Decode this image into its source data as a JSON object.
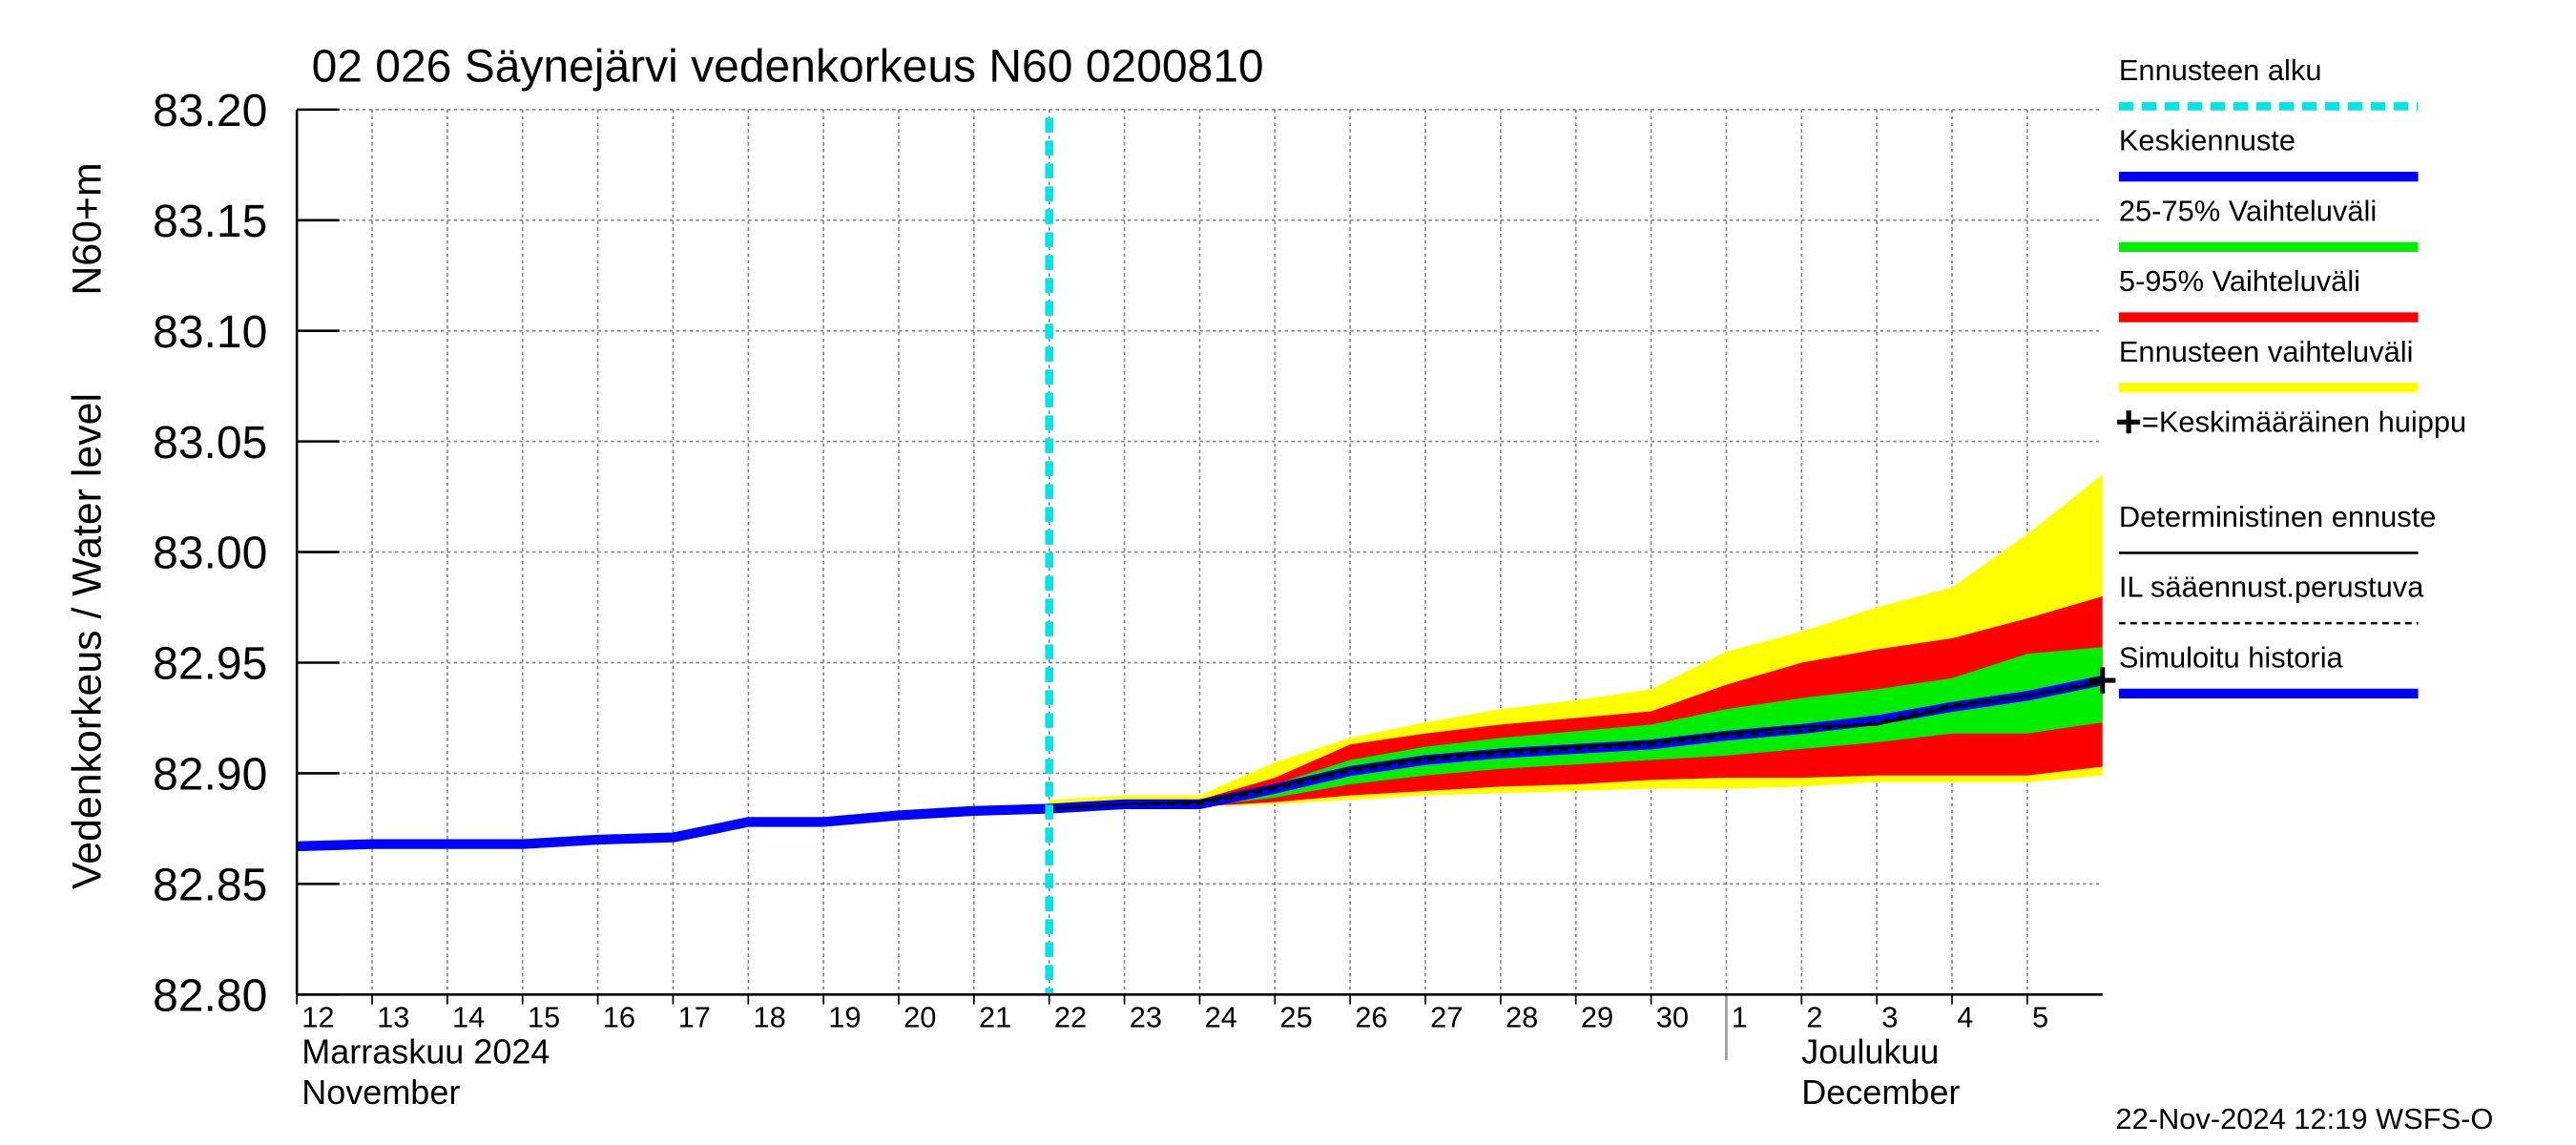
{
  "chart_data": {
    "type": "line",
    "title": "02 026 Säynejärvi vedenkorkeus N60 0200810",
    "y_label": "Vedenkorkeus / Water level",
    "y_unit": "N60+m",
    "footer": "22-Nov-2024 12:19 WSFS-O",
    "grid": true,
    "legend": "right",
    "ylim": [
      82.8,
      83.2
    ],
    "yticks": [
      {
        "value": 82.8,
        "label": "82.80"
      },
      {
        "value": 82.85,
        "label": "82.85"
      },
      {
        "value": 82.9,
        "label": "82.90"
      },
      {
        "value": 82.95,
        "label": "82.95"
      },
      {
        "value": 83.0,
        "label": "83.00"
      },
      {
        "value": 83.05,
        "label": "83.05"
      },
      {
        "value": 83.1,
        "label": "83.10"
      },
      {
        "value": 83.15,
        "label": "83.15"
      },
      {
        "value": 83.2,
        "label": "83.20"
      }
    ],
    "xlim": [
      "2024-11-12",
      "2024-12-06"
    ],
    "xticks": [
      {
        "value": "2024-11-12",
        "label": "12"
      },
      {
        "value": "2024-11-13",
        "label": "13"
      },
      {
        "value": "2024-11-14",
        "label": "14"
      },
      {
        "value": "2024-11-15",
        "label": "15"
      },
      {
        "value": "2024-11-16",
        "label": "16"
      },
      {
        "value": "2024-11-17",
        "label": "17"
      },
      {
        "value": "2024-11-18",
        "label": "18"
      },
      {
        "value": "2024-11-19",
        "label": "19"
      },
      {
        "value": "2024-11-20",
        "label": "20"
      },
      {
        "value": "2024-11-21",
        "label": "21"
      },
      {
        "value": "2024-11-22",
        "label": "22"
      },
      {
        "value": "2024-11-23",
        "label": "23"
      },
      {
        "value": "2024-11-24",
        "label": "24"
      },
      {
        "value": "2024-11-25",
        "label": "25"
      },
      {
        "value": "2024-11-26",
        "label": "26"
      },
      {
        "value": "2024-11-27",
        "label": "27"
      },
      {
        "value": "2024-11-28",
        "label": "28"
      },
      {
        "value": "2024-11-29",
        "label": "29"
      },
      {
        "value": "2024-11-30",
        "label": "30"
      },
      {
        "value": "2024-12-01",
        "label": "1"
      },
      {
        "value": "2024-12-02",
        "label": "2"
      },
      {
        "value": "2024-12-03",
        "label": "3"
      },
      {
        "value": "2024-12-04",
        "label": "4"
      },
      {
        "value": "2024-12-05",
        "label": "5"
      }
    ],
    "month_labels": [
      {
        "x": "2024-11-12",
        "fi": "Marraskuu 2024",
        "en": "November"
      },
      {
        "x": "2024-12-01",
        "fi": "Joulukuu",
        "en": "December"
      }
    ],
    "x": [
      "2024-11-12",
      "2024-11-13",
      "2024-11-14",
      "2024-11-15",
      "2024-11-16",
      "2024-11-17",
      "2024-11-18",
      "2024-11-19",
      "2024-11-20",
      "2024-11-21",
      "2024-11-22",
      "2024-11-23",
      "2024-11-24",
      "2024-11-25",
      "2024-11-26",
      "2024-11-27",
      "2024-11-28",
      "2024-11-29",
      "2024-11-30",
      "2024-12-01",
      "2024-12-02",
      "2024-12-03",
      "2024-12-04",
      "2024-12-05",
      "2024-12-06"
    ],
    "forecast_start": {
      "name": "Ennusteen alku",
      "x": "2024-11-22",
      "color": "#00e5e5"
    },
    "peak": {
      "name": "=Keskimääräinen huippu",
      "x": "2024-12-06",
      "y": 82.942,
      "color": "#000000"
    },
    "series": [
      {
        "name": "Keskiennuste",
        "kind": "line",
        "color": "#0000ff",
        "values": [
          null,
          null,
          null,
          null,
          null,
          null,
          null,
          null,
          null,
          null,
          82.884,
          82.886,
          82.886,
          82.893,
          82.901,
          82.906,
          82.909,
          82.911,
          82.913,
          82.917,
          82.92,
          82.924,
          82.93,
          82.935,
          82.942
        ]
      },
      {
        "name": "25-75% Vaihteluväli",
        "kind": "band",
        "color": "#00ee00",
        "values": [
          null,
          null,
          null,
          null,
          null,
          null,
          null,
          null,
          null,
          null,
          82.885,
          82.887,
          82.887,
          82.895,
          82.906,
          82.912,
          82.916,
          82.919,
          82.922,
          82.929,
          82.934,
          82.938,
          82.943,
          82.954,
          82.957
        ],
        "lower": [
          null,
          null,
          null,
          null,
          null,
          null,
          null,
          null,
          null,
          null,
          82.884,
          82.885,
          82.885,
          82.889,
          82.895,
          82.899,
          82.902,
          82.904,
          82.906,
          82.908,
          82.911,
          82.914,
          82.918,
          82.918,
          82.923
        ]
      },
      {
        "name": "5-95% Vaihteluväli",
        "kind": "band",
        "color": "#ff0000",
        "values": [
          null,
          null,
          null,
          null,
          null,
          null,
          null,
          null,
          null,
          null,
          82.885,
          82.888,
          82.888,
          82.898,
          82.913,
          82.918,
          82.922,
          82.925,
          82.928,
          82.94,
          82.95,
          82.956,
          82.961,
          82.97,
          82.98
        ],
        "lower": [
          null,
          null,
          null,
          null,
          null,
          null,
          null,
          null,
          null,
          null,
          82.884,
          82.885,
          82.885,
          82.887,
          82.89,
          82.892,
          82.894,
          82.895,
          82.897,
          82.898,
          82.898,
          82.899,
          82.899,
          82.899,
          82.903
        ]
      },
      {
        "name": "Ennusteen vaihteluväli",
        "kind": "band",
        "color": "#ffff00",
        "values": [
          null,
          null,
          null,
          null,
          null,
          null,
          null,
          null,
          null,
          null,
          82.888,
          82.89,
          82.89,
          82.905,
          82.916,
          82.923,
          82.929,
          82.933,
          82.938,
          82.955,
          82.964,
          82.975,
          82.984,
          83.008,
          83.035
        ],
        "lower": [
          null,
          null,
          null,
          null,
          null,
          null,
          null,
          null,
          null,
          null,
          82.884,
          82.885,
          82.885,
          82.886,
          82.888,
          82.89,
          82.891,
          82.892,
          82.893,
          82.893,
          82.894,
          82.896,
          82.896,
          82.896,
          82.899
        ]
      },
      {
        "name": "Deterministinen ennuste",
        "kind": "line",
        "color": "#000000",
        "values": [
          null,
          null,
          null,
          null,
          null,
          null,
          null,
          null,
          null,
          null,
          82.884,
          82.886,
          82.887,
          82.894,
          82.902,
          82.907,
          82.91,
          82.912,
          82.914,
          82.918,
          82.921,
          82.922,
          82.93,
          82.935,
          82.941
        ]
      },
      {
        "name": "IL sääennust.perustuva",
        "kind": "line",
        "dashed": true,
        "color": "#000000",
        "values": [
          null,
          null,
          null,
          null,
          null,
          null,
          null,
          null,
          null,
          null,
          82.884,
          82.886,
          82.886,
          82.893,
          82.901,
          82.906,
          82.909,
          82.911,
          82.913,
          82.917,
          82.919,
          82.923,
          82.931,
          82.935,
          82.942
        ]
      },
      {
        "name": "Simuloitu historia",
        "kind": "line",
        "color": "#0000ff",
        "values": [
          82.867,
          82.868,
          82.868,
          82.868,
          82.87,
          82.871,
          82.878,
          82.878,
          82.881,
          82.883,
          82.884,
          null,
          null,
          null,
          null,
          null,
          null,
          null,
          null,
          null,
          null,
          null,
          null,
          null,
          null
        ]
      }
    ]
  }
}
